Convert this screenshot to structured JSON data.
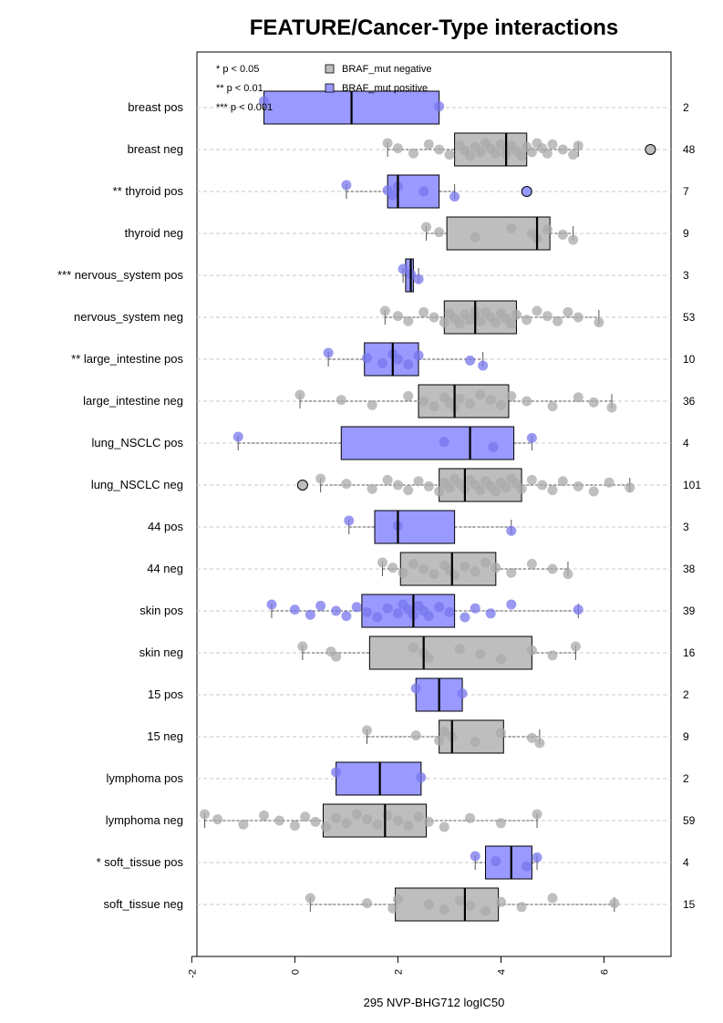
{
  "chart_data": {
    "type": "boxplot",
    "title": "FEATURE/Cancer-Type interactions",
    "xlabel": "295 NVP-BHG712 logIC50",
    "xlim": [
      -1.9,
      7.3
    ],
    "xticks": [
      -2,
      0,
      2,
      4,
      6
    ],
    "significance_legend": [
      "* p < 0.05",
      "** p < 0.01",
      "*** p < 0.001"
    ],
    "legend": [
      {
        "name": "BRAF_mut negative",
        "color": "#bebebe"
      },
      {
        "name": "BRAF_mut positive",
        "color": "#9999ff"
      }
    ],
    "point_colors": {
      "neg": "#a9a9a9",
      "pos": "#7777ee"
    },
    "rows": [
      {
        "label": "breast pos",
        "group": "pos",
        "count": "2",
        "q1": -0.6,
        "median": 1.1,
        "q3": 2.8,
        "wlo": -0.6,
        "whi": 2.8,
        "points": [
          -0.6,
          2.8
        ],
        "outliers": []
      },
      {
        "label": "breast neg",
        "group": "neg",
        "count": "48",
        "q1": 3.1,
        "median": 4.1,
        "q3": 4.5,
        "wlo": 1.8,
        "whi": 5.5,
        "points": [
          1.8,
          2.0,
          2.3,
          2.6,
          2.8,
          3.0,
          3.2,
          3.3,
          3.4,
          3.5,
          3.6,
          3.7,
          3.8,
          3.9,
          4.0,
          4.1,
          4.1,
          4.2,
          4.3,
          4.4,
          4.5,
          4.6,
          4.7,
          4.8,
          4.9,
          5.0,
          5.2,
          5.4,
          5.5
        ],
        "outliers": [
          6.9
        ]
      },
      {
        "label": "** thyroid pos",
        "group": "pos",
        "count": "7",
        "q1": 1.8,
        "median": 2.0,
        "q3": 2.8,
        "wlo": 1.0,
        "whi": 3.1,
        "points": [
          1.0,
          1.8,
          1.9,
          2.0,
          2.5,
          3.1
        ],
        "outliers": [
          4.5
        ]
      },
      {
        "label": "thyroid neg",
        "group": "neg",
        "count": "9",
        "q1": 2.95,
        "median": 4.7,
        "q3": 4.95,
        "wlo": 2.55,
        "whi": 5.4,
        "points": [
          2.55,
          2.8,
          3.5,
          4.2,
          4.6,
          4.7,
          4.9,
          5.2,
          5.4
        ],
        "outliers": []
      },
      {
        "label": "*** nervous_system pos",
        "group": "pos",
        "count": "3",
        "q1": 2.15,
        "median": 2.25,
        "q3": 2.3,
        "wlo": 2.1,
        "whi": 2.4,
        "points": [
          2.1,
          2.25,
          2.4
        ],
        "outliers": []
      },
      {
        "label": "nervous_system neg",
        "group": "neg",
        "count": "53",
        "q1": 2.9,
        "median": 3.5,
        "q3": 4.3,
        "wlo": 1.75,
        "whi": 5.9,
        "points": [
          1.75,
          2.0,
          2.2,
          2.5,
          2.7,
          2.9,
          3.0,
          3.1,
          3.2,
          3.3,
          3.4,
          3.5,
          3.5,
          3.6,
          3.7,
          3.8,
          3.9,
          4.0,
          4.1,
          4.2,
          4.3,
          4.5,
          4.7,
          4.9,
          5.1,
          5.3,
          5.5,
          5.9
        ],
        "outliers": []
      },
      {
        "label": "** large_intestine pos",
        "group": "pos",
        "count": "10",
        "q1": 1.35,
        "median": 1.9,
        "q3": 2.4,
        "wlo": 0.65,
        "whi": 3.65,
        "points": [
          0.65,
          1.4,
          1.7,
          1.9,
          2.0,
          2.2,
          2.4,
          3.4,
          3.65
        ],
        "outliers": []
      },
      {
        "label": "large_intestine neg",
        "group": "neg",
        "count": "36",
        "q1": 2.4,
        "median": 3.1,
        "q3": 4.15,
        "wlo": 0.1,
        "whi": 6.15,
        "points": [
          0.1,
          0.9,
          1.5,
          2.2,
          2.5,
          2.7,
          2.9,
          3.0,
          3.1,
          3.2,
          3.4,
          3.6,
          3.8,
          4.0,
          4.2,
          4.5,
          5.0,
          5.5,
          5.8,
          6.15
        ],
        "outliers": []
      },
      {
        "label": "lung_NSCLC pos",
        "group": "pos",
        "count": "4",
        "q1": 0.9,
        "median": 3.4,
        "q3": 4.25,
        "wlo": -1.1,
        "whi": 4.6,
        "points": [
          -1.1,
          2.9,
          3.85,
          4.6
        ],
        "outliers": []
      },
      {
        "label": "lung_NSCLC neg",
        "group": "neg",
        "count": "101",
        "q1": 2.8,
        "median": 3.3,
        "q3": 4.4,
        "wlo": 0.5,
        "whi": 6.5,
        "points": [
          0.5,
          1.0,
          1.5,
          1.8,
          2.0,
          2.2,
          2.4,
          2.6,
          2.8,
          2.9,
          3.0,
          3.1,
          3.2,
          3.3,
          3.4,
          3.5,
          3.6,
          3.7,
          3.8,
          3.9,
          4.0,
          4.1,
          4.2,
          4.3,
          4.4,
          4.6,
          4.8,
          5.0,
          5.2,
          5.5,
          5.8,
          6.1,
          6.5
        ],
        "outliers": [
          0.15
        ]
      },
      {
        "label": "44 pos",
        "group": "pos",
        "count": "3",
        "q1": 1.55,
        "median": 2.0,
        "q3": 3.1,
        "wlo": 1.05,
        "whi": 4.2,
        "points": [
          1.05,
          2.0,
          4.2
        ],
        "outliers": []
      },
      {
        "label": "44 neg",
        "group": "neg",
        "count": "38",
        "q1": 2.05,
        "median": 3.05,
        "q3": 3.9,
        "wlo": 1.7,
        "whi": 5.3,
        "points": [
          1.7,
          1.9,
          2.1,
          2.3,
          2.5,
          2.7,
          2.9,
          3.0,
          3.1,
          3.3,
          3.5,
          3.7,
          3.9,
          4.2,
          4.6,
          5.0,
          5.3
        ],
        "outliers": []
      },
      {
        "label": "skin pos",
        "group": "pos",
        "count": "39",
        "q1": 1.3,
        "median": 2.3,
        "q3": 3.1,
        "wlo": -0.45,
        "whi": 5.5,
        "points": [
          -0.45,
          0.0,
          0.3,
          0.5,
          0.8,
          1.0,
          1.2,
          1.4,
          1.6,
          1.8,
          2.0,
          2.1,
          2.2,
          2.3,
          2.4,
          2.5,
          2.6,
          2.8,
          3.0,
          3.3,
          3.5,
          3.8,
          4.2,
          5.5
        ],
        "outliers": []
      },
      {
        "label": "skin neg",
        "group": "neg",
        "count": "16",
        "q1": 1.45,
        "median": 2.5,
        "q3": 4.6,
        "wlo": 0.15,
        "whi": 5.45,
        "points": [
          0.15,
          0.7,
          0.8,
          2.3,
          2.5,
          2.6,
          3.2,
          3.6,
          4.0,
          4.6,
          5.0,
          5.45
        ],
        "outliers": []
      },
      {
        "label": "15 pos",
        "group": "pos",
        "count": "2",
        "q1": 2.35,
        "median": 2.8,
        "q3": 3.25,
        "wlo": 2.35,
        "whi": 3.25,
        "points": [
          2.35,
          3.25
        ],
        "outliers": []
      },
      {
        "label": "15 neg",
        "group": "neg",
        "count": "9",
        "q1": 2.8,
        "median": 3.05,
        "q3": 4.05,
        "wlo": 1.4,
        "whi": 4.75,
        "points": [
          1.4,
          2.35,
          2.8,
          2.9,
          3.05,
          3.5,
          4.0,
          4.6,
          4.75
        ],
        "outliers": []
      },
      {
        "label": "lymphoma pos",
        "group": "pos",
        "count": "2",
        "q1": 0.8,
        "median": 1.65,
        "q3": 2.45,
        "wlo": 0.8,
        "whi": 2.45,
        "points": [
          0.8,
          2.45
        ],
        "outliers": []
      },
      {
        "label": "lymphoma neg",
        "group": "neg",
        "count": "59",
        "q1": 0.55,
        "median": 1.75,
        "q3": 2.55,
        "wlo": -1.75,
        "whi": 4.7,
        "points": [
          -1.75,
          -1.5,
          -1.0,
          -0.6,
          -0.3,
          0.0,
          0.2,
          0.4,
          0.6,
          0.8,
          1.0,
          1.2,
          1.4,
          1.6,
          1.8,
          2.0,
          2.2,
          2.4,
          2.6,
          2.9,
          3.4,
          4.0,
          4.7
        ],
        "outliers": []
      },
      {
        "label": "* soft_tissue pos",
        "group": "pos",
        "count": "4",
        "q1": 3.7,
        "median": 4.2,
        "q3": 4.6,
        "wlo": 3.5,
        "whi": 4.7,
        "points": [
          3.5,
          3.9,
          4.5,
          4.7
        ],
        "outliers": []
      },
      {
        "label": "soft_tissue neg",
        "group": "neg",
        "count": "15",
        "q1": 1.95,
        "median": 3.3,
        "q3": 3.95,
        "wlo": 0.3,
        "whi": 6.2,
        "points": [
          0.3,
          1.4,
          1.9,
          2.0,
          2.6,
          2.9,
          3.2,
          3.4,
          3.7,
          4.0,
          4.4,
          5.0,
          6.2
        ],
        "outliers": []
      }
    ]
  }
}
